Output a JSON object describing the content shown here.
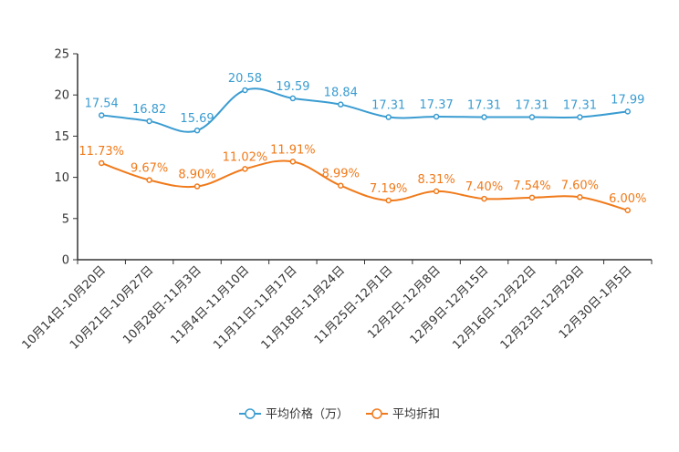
{
  "chart_data": {
    "type": "line",
    "title": "",
    "xlabel": "",
    "ylabel": "",
    "ylim": [
      0,
      25
    ],
    "yticks": [
      0,
      5,
      10,
      15,
      20,
      25
    ],
    "grid": false,
    "legend_position": "bottom-center",
    "categories": [
      "10月14日-10月20日",
      "10月21日-10月27日",
      "10月28日-11月3日",
      "11月4日-11月10日",
      "11月11日-11月17日",
      "11月18日-11月24日",
      "11月25日-12月1日",
      "12月2日-12月8日",
      "12月9日-12月15日",
      "12月16日-12月22日",
      "12月23日-12月29日",
      "12月30日-1月5日"
    ],
    "series": [
      {
        "name": "平均价格（万）",
        "color": "#3a9cd1",
        "values": [
          17.54,
          16.82,
          15.69,
          20.58,
          19.59,
          18.84,
          17.31,
          17.37,
          17.31,
          17.31,
          17.31,
          17.99
        ],
        "labels": [
          "17.54",
          "16.82",
          "15.69",
          "20.58",
          "19.59",
          "18.84",
          "17.31",
          "17.37",
          "17.31",
          "17.31",
          "17.31",
          "17.99"
        ]
      },
      {
        "name": "平均折扣",
        "color": "#f07a1a",
        "values": [
          11.73,
          9.67,
          8.9,
          11.02,
          11.91,
          8.99,
          7.19,
          8.31,
          7.4,
          7.54,
          7.6,
          6.0
        ],
        "labels": [
          "11.73%",
          "9.67%",
          "8.90%",
          "11.02%",
          "11.91%",
          "8.99%",
          "7.19%",
          "8.31%",
          "7.40%",
          "7.54%",
          "7.60%",
          "6.00%"
        ]
      }
    ]
  }
}
